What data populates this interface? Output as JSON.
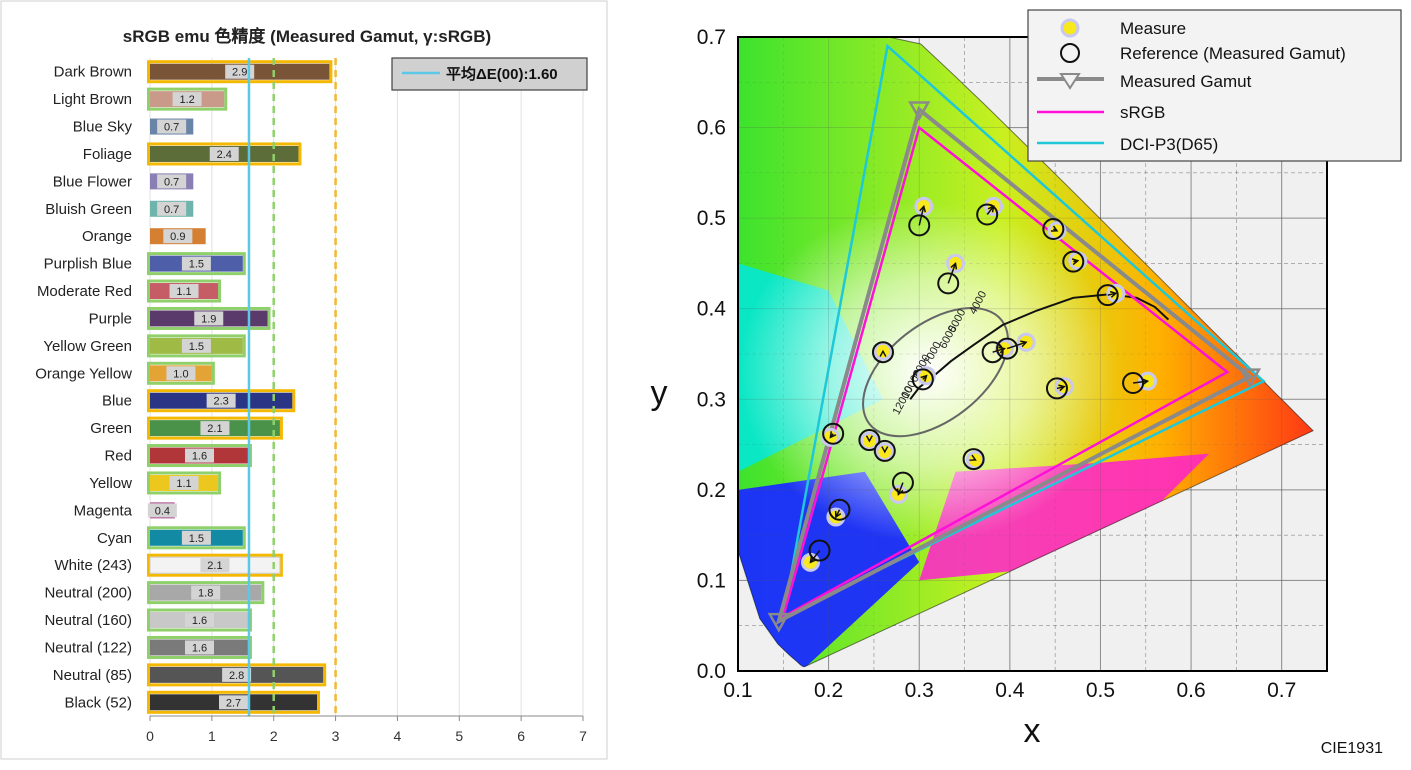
{
  "bar_chart": {
    "title": "sRGB emu 色精度 (Measured Gamut, γ:sRGB)",
    "legend_label": "平均ΔE(00):1.60",
    "average": 1.6,
    "xlim": [
      0,
      7
    ],
    "xticks": [
      "0",
      "1",
      "2",
      "3",
      "4",
      "5",
      "6",
      "7"
    ],
    "threshold_lines": [
      {
        "value": 1.6,
        "style": "solid",
        "color": "#5bc8e8"
      },
      {
        "value": 2.0,
        "style": "dashed",
        "color": "#8fd06a"
      },
      {
        "value": 3.0,
        "style": "dashed",
        "color": "#f5b830"
      }
    ],
    "rows": [
      {
        "label": "Dark Brown",
        "value": 2.9,
        "text": "2.9",
        "color": "#7a5436",
        "border": "#f5b800"
      },
      {
        "label": "Light Brown",
        "value": 1.2,
        "text": "1.2",
        "color": "#c9998a",
        "border": "#8fd06a"
      },
      {
        "label": "Blue Sky",
        "value": 0.7,
        "text": "0.7",
        "color": "#6a84a8",
        "border": ""
      },
      {
        "label": "Foliage",
        "value": 2.4,
        "text": "2.4",
        "color": "#5d6d3a",
        "border": "#f5b800"
      },
      {
        "label": "Blue Flower",
        "value": 0.7,
        "text": "0.7",
        "color": "#8a7fb4",
        "border": ""
      },
      {
        "label": "Bluish Green",
        "value": 0.7,
        "text": "0.7",
        "color": "#6fb4ac",
        "border": ""
      },
      {
        "label": "Orange",
        "value": 0.9,
        "text": "0.9",
        "color": "#d57f32",
        "border": ""
      },
      {
        "label": "Purplish Blue",
        "value": 1.5,
        "text": "1.5",
        "color": "#4f5ea8",
        "border": "#8fd06a"
      },
      {
        "label": "Moderate Red",
        "value": 1.1,
        "text": "1.1",
        "color": "#c55c66",
        "border": "#8fd06a"
      },
      {
        "label": "Purple",
        "value": 1.9,
        "text": "1.9",
        "color": "#5a3a6a",
        "border": "#8fd06a"
      },
      {
        "label": "Yellow Green",
        "value": 1.5,
        "text": "1.5",
        "color": "#9fba45",
        "border": "#8fd06a"
      },
      {
        "label": "Orange Yellow",
        "value": 1.0,
        "text": "1.0",
        "color": "#e4a335",
        "border": "#8fd06a"
      },
      {
        "label": "Blue",
        "value": 2.3,
        "text": "2.3",
        "color": "#2b3585",
        "border": "#f5b800"
      },
      {
        "label": "Green",
        "value": 2.1,
        "text": "2.1",
        "color": "#4a924a",
        "border": "#f5b800"
      },
      {
        "label": "Red",
        "value": 1.6,
        "text": "1.6",
        "color": "#b0363a",
        "border": "#8fd06a"
      },
      {
        "label": "Yellow",
        "value": 1.1,
        "text": "1.1",
        "color": "#ecc81e",
        "border": "#8fd06a"
      },
      {
        "label": "Magenta",
        "value": 0.4,
        "text": "0.4",
        "color": "#b04a92",
        "border": ""
      },
      {
        "label": "Cyan",
        "value": 1.5,
        "text": "1.5",
        "color": "#138aa4",
        "border": "#8fd06a"
      },
      {
        "label": "White (243)",
        "value": 2.1,
        "text": "2.1",
        "color": "#f3f3f3",
        "border": "#f5b800"
      },
      {
        "label": "Neutral (200)",
        "value": 1.8,
        "text": "1.8",
        "color": "#a8a8a8",
        "border": "#8fd06a"
      },
      {
        "label": "Neutral (160)",
        "value": 1.6,
        "text": "1.6",
        "color": "#c8c8c8",
        "border": "#8fd06a"
      },
      {
        "label": "Neutral (122)",
        "value": 1.6,
        "text": "1.6",
        "color": "#7a7a7a",
        "border": "#8fd06a"
      },
      {
        "label": "Neutral (85)",
        "value": 2.8,
        "text": "2.8",
        "color": "#555555",
        "border": "#f5b800"
      },
      {
        "label": "Black (52)",
        "value": 2.7,
        "text": "2.7",
        "color": "#333333",
        "border": "#f5b800"
      }
    ]
  },
  "cie_chart": {
    "xlabel": "x",
    "ylabel": "y",
    "xlim": [
      0.1,
      0.75
    ],
    "ylim": [
      0.0,
      0.7
    ],
    "xticks": [
      "0.1",
      "0.2",
      "0.3",
      "0.4",
      "0.5",
      "0.6",
      "0.7"
    ],
    "yticks": [
      "0.0",
      "0.1",
      "0.2",
      "0.3",
      "0.4",
      "0.5",
      "0.6",
      "0.7"
    ],
    "footer": "CIE1931",
    "legend": [
      "Measure",
      "Reference (Measured Gamut)",
      "Measured Gamut",
      "sRGB",
      "DCI-P3(D65)"
    ],
    "srgb": [
      [
        0.64,
        0.33
      ],
      [
        0.3,
        0.6
      ],
      [
        0.15,
        0.06
      ]
    ],
    "dci_p3": [
      [
        0.68,
        0.32
      ],
      [
        0.265,
        0.69
      ],
      [
        0.15,
        0.06
      ]
    ],
    "measured_gamut": [
      [
        0.665,
        0.325
      ],
      [
        0.3,
        0.62
      ],
      [
        0.145,
        0.055
      ]
    ],
    "planck_labels": [
      "4000",
      "5000",
      "6000",
      "7000",
      "8000",
      "10000",
      "12000"
    ],
    "points": [
      {
        "ref": [
          0.3,
          0.492
        ],
        "meas": [
          0.305,
          0.513
        ]
      },
      {
        "ref": [
          0.375,
          0.504
        ],
        "meas": [
          0.382,
          0.513
        ]
      },
      {
        "ref": [
          0.448,
          0.488
        ],
        "meas": [
          0.452,
          0.486
        ]
      },
      {
        "ref": [
          0.47,
          0.452
        ],
        "meas": [
          0.475,
          0.453
        ]
      },
      {
        "ref": [
          0.332,
          0.428
        ],
        "meas": [
          0.34,
          0.45
        ]
      },
      {
        "ref": [
          0.508,
          0.415
        ],
        "meas": [
          0.517,
          0.417
        ]
      },
      {
        "ref": [
          0.381,
          0.352
        ],
        "meas": [
          0.394,
          0.356
        ]
      },
      {
        "ref": [
          0.397,
          0.356
        ],
        "meas": [
          0.418,
          0.363
        ]
      },
      {
        "ref": [
          0.26,
          0.352
        ],
        "meas": [
          0.26,
          0.353
        ]
      },
      {
        "ref": [
          0.304,
          0.322
        ],
        "meas": [
          0.308,
          0.326
        ]
      },
      {
        "ref": [
          0.452,
          0.312
        ],
        "meas": [
          0.46,
          0.314
        ]
      },
      {
        "ref": [
          0.536,
          0.318
        ],
        "meas": [
          0.552,
          0.32
        ]
      },
      {
        "ref": [
          0.205,
          0.262
        ],
        "meas": [
          0.202,
          0.258
        ]
      },
      {
        "ref": [
          0.245,
          0.255
        ],
        "meas": [
          0.245,
          0.254
        ]
      },
      {
        "ref": [
          0.262,
          0.243
        ],
        "meas": [
          0.262,
          0.242
        ]
      },
      {
        "ref": [
          0.36,
          0.234
        ],
        "meas": [
          0.362,
          0.233
        ]
      },
      {
        "ref": [
          0.282,
          0.208
        ],
        "meas": [
          0.277,
          0.195
        ]
      },
      {
        "ref": [
          0.212,
          0.178
        ],
        "meas": [
          0.208,
          0.17
        ]
      },
      {
        "ref": [
          0.19,
          0.133
        ],
        "meas": [
          0.18,
          0.12
        ]
      }
    ]
  }
}
